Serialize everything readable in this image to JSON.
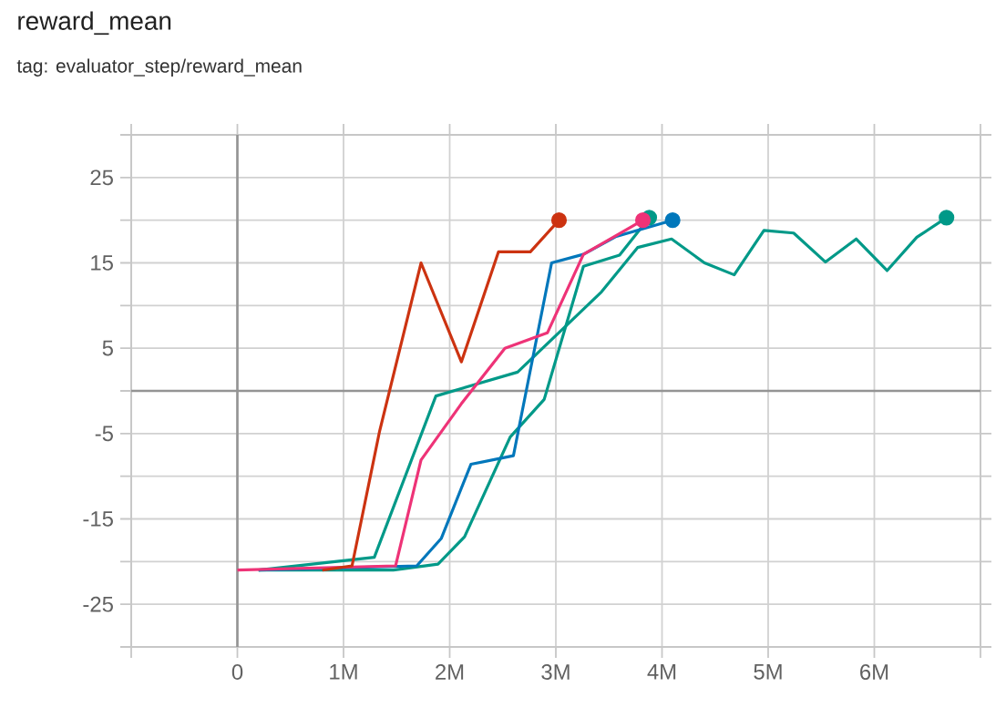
{
  "chart_data": {
    "type": "line",
    "title": "reward_mean",
    "subtitle": "tag: evaluator_step/reward_mean",
    "xlim": [
      -1000000,
      7000000
    ],
    "ylim": [
      -30,
      30
    ],
    "xticks": [
      {
        "value": -1000000,
        "label": null
      },
      0,
      {
        "value": 1000000,
        "label": "1M"
      },
      {
        "value": 2000000,
        "label": "2M"
      },
      {
        "value": 3000000,
        "label": "3M"
      },
      {
        "value": 4000000,
        "label": "4M"
      },
      {
        "value": 5000000,
        "label": "5M"
      },
      {
        "value": 6000000,
        "label": "6M"
      },
      {
        "value": 7000000,
        "label": null
      }
    ],
    "yticks": [
      {
        "value": -30,
        "label": null
      },
      -25,
      {
        "value": -20,
        "label": null
      },
      -15,
      {
        "value": -10,
        "label": null
      },
      -5,
      {
        "value": 0,
        "label": null
      },
      5,
      {
        "value": 10,
        "label": null
      },
      15,
      {
        "value": 20,
        "label": null
      },
      25,
      {
        "value": 30,
        "label": null
      }
    ],
    "grid": true,
    "line_style": "solid",
    "series": [
      {
        "color": "#009988",
        "x": [
          200000,
          1290000,
          1870000,
          2640000,
          3430000,
          3770000,
          4090000,
          4400000,
          4680000,
          4960000,
          5240000,
          5540000,
          5830000,
          6120000,
          6400000,
          6680000
        ],
        "values": [
          -21,
          -19.5,
          -0.6,
          2.2,
          11.6,
          16.8,
          17.8,
          15,
          13.6,
          18.8,
          18.5,
          15.1,
          17.8,
          14.1,
          18,
          20.3
        ]
      },
      {
        "color": "#009988",
        "x": [
          200000,
          1470000,
          1890000,
          2140000,
          2570000,
          2890000,
          3260000,
          3600000,
          3880000
        ],
        "values": [
          -21,
          -21,
          -20.3,
          -17.1,
          -5.4,
          -1,
          14.6,
          15.9,
          20.3
        ]
      },
      {
        "color": "#0077bb",
        "x": [
          200000,
          1690000,
          1920000,
          2200000,
          2600000,
          2960000,
          3260000,
          3570000,
          4100000
        ],
        "values": [
          -21,
          -20.5,
          -17.3,
          -8.6,
          -7.6,
          15,
          16,
          18.1,
          20
        ]
      },
      {
        "color": "#ee3377",
        "x": [
          0,
          1490000,
          1730000,
          2110000,
          2520000,
          2920000,
          3260000,
          3820000
        ],
        "values": [
          -21,
          -20.5,
          -8.1,
          -1.5,
          5,
          6.8,
          16,
          20
        ]
      },
      {
        "color": "#cc3311",
        "x": [
          800000,
          1080000,
          1340000,
          1730000,
          2110000,
          2460000,
          2760000,
          3030000
        ],
        "values": [
          -21,
          -20.5,
          -4.7,
          15,
          3.4,
          16.3,
          16.3,
          20
        ]
      }
    ]
  }
}
